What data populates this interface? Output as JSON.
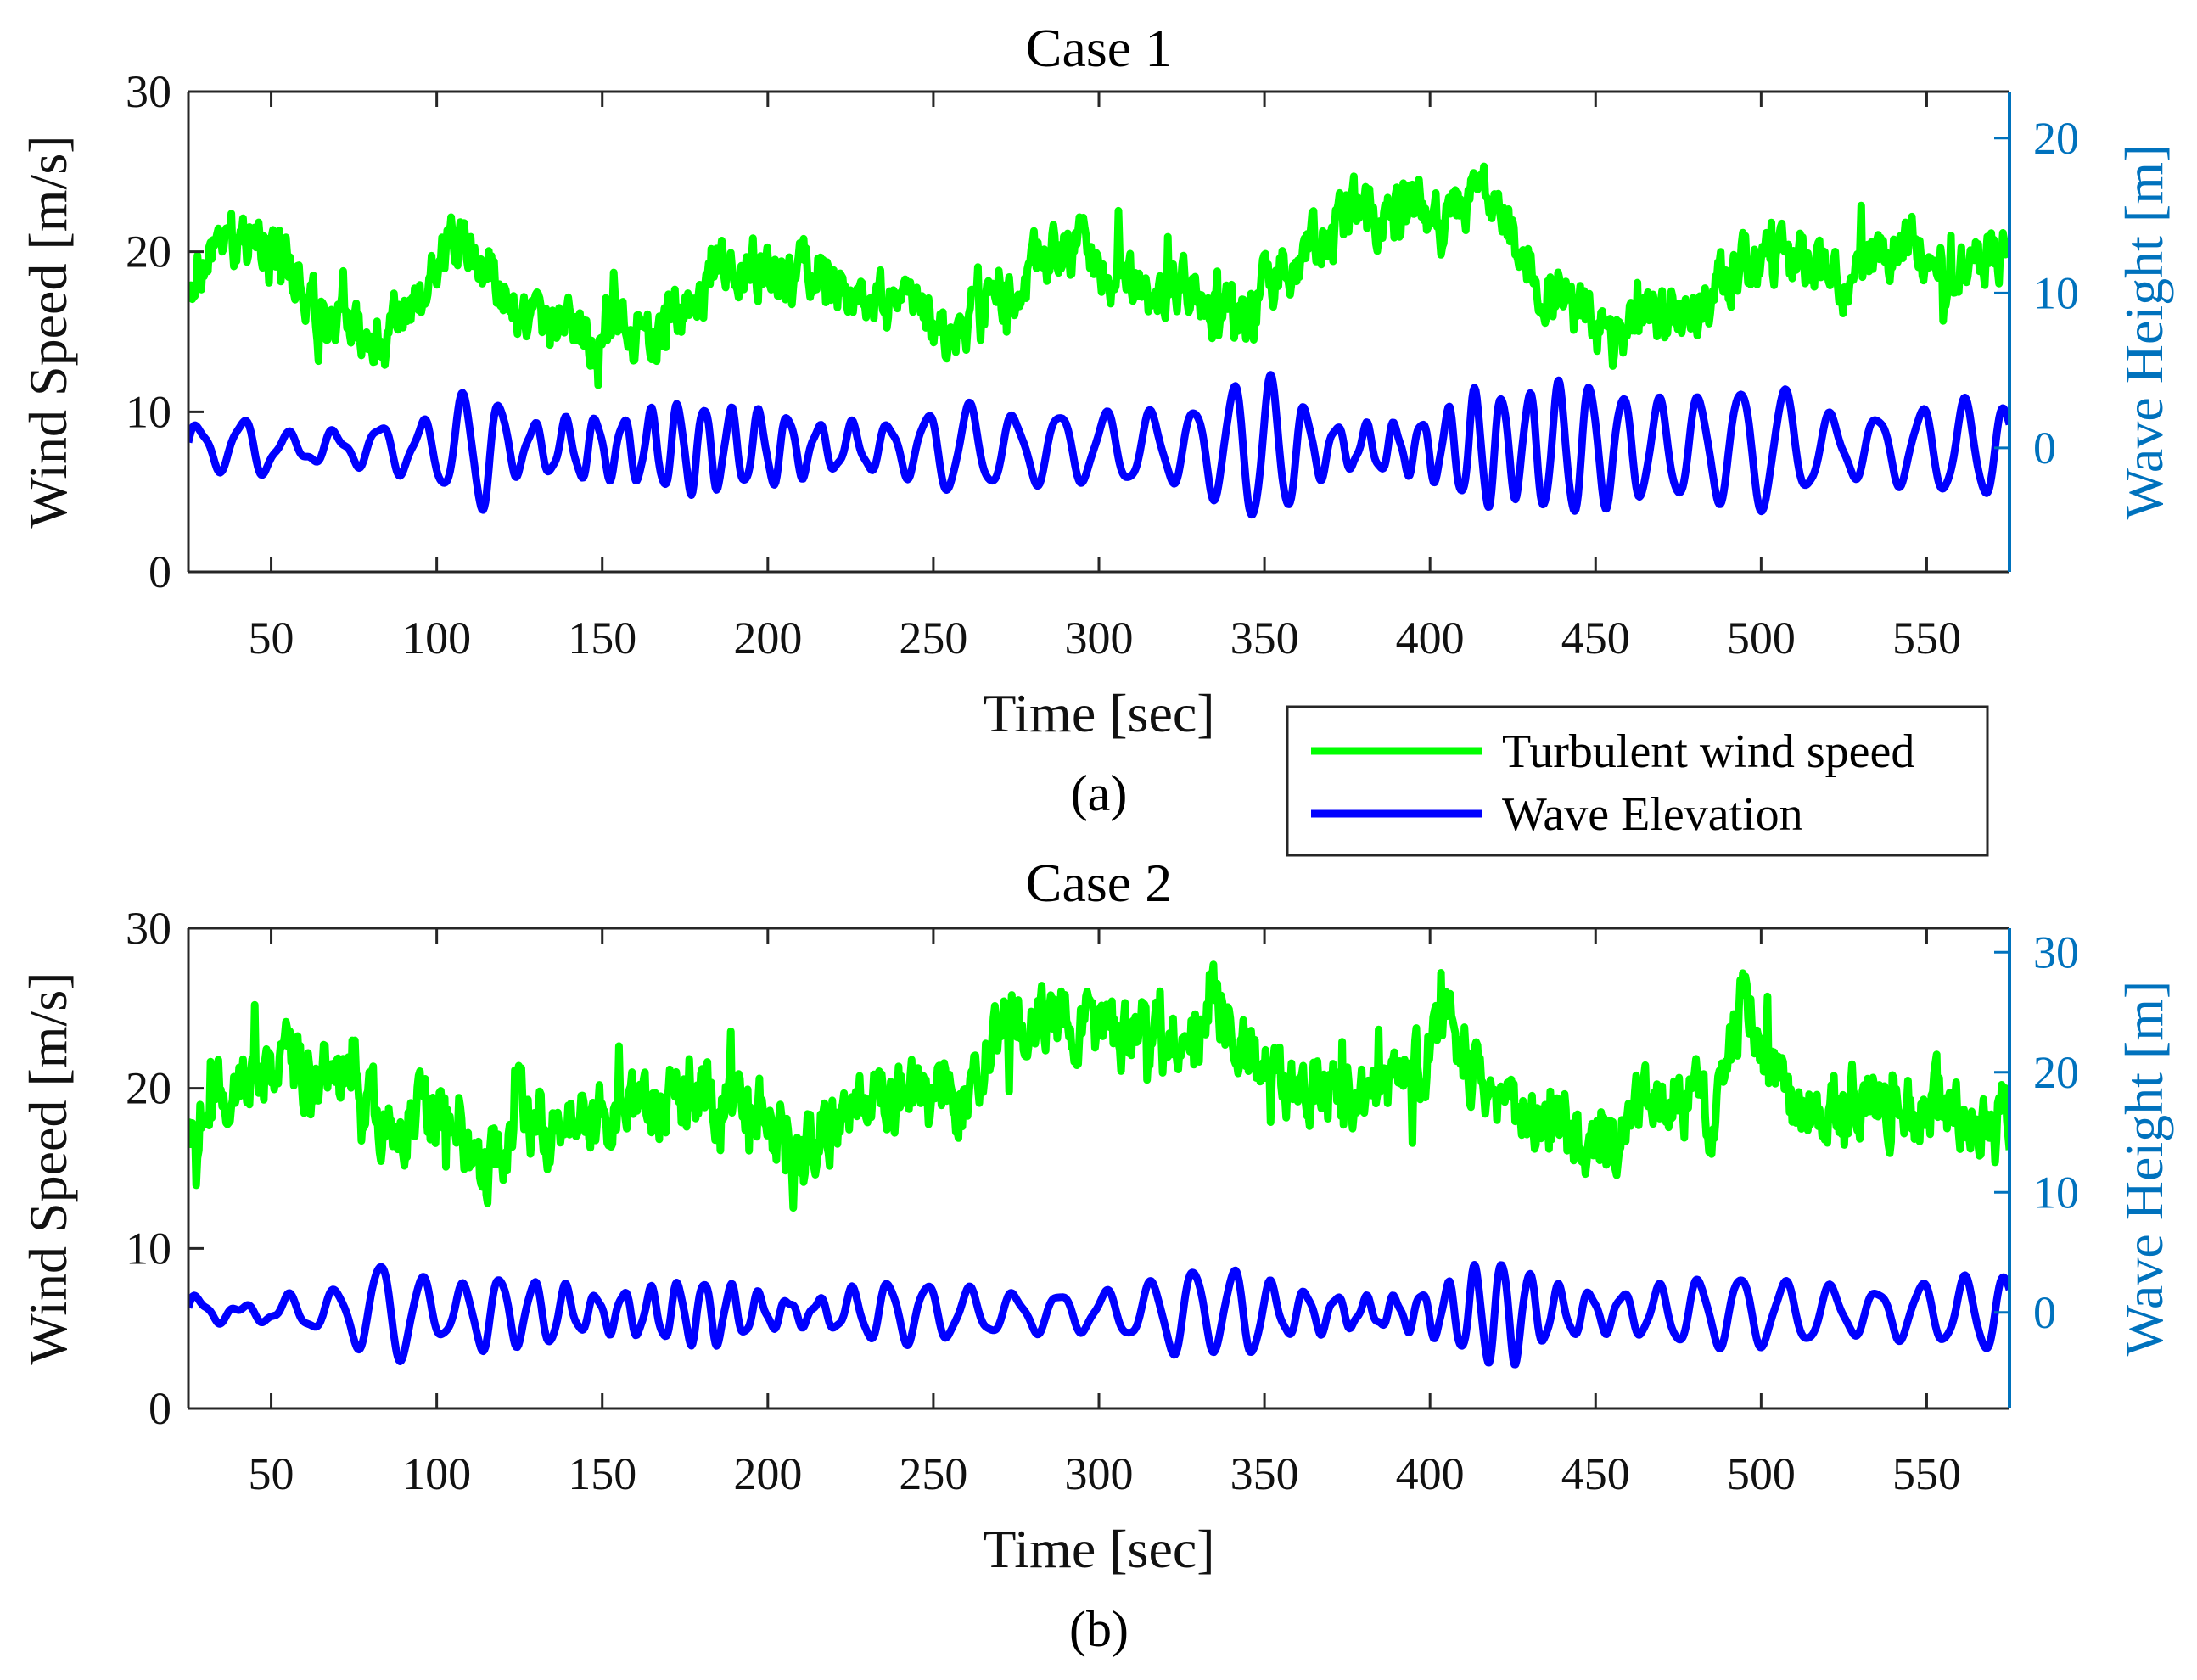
{
  "legend": {
    "position": "between-panels-right",
    "entries": [
      {
        "label": "Turbulent wind speed",
        "color": "#00FF00"
      },
      {
        "label": "Wave Elevation",
        "color": "#0000FF"
      }
    ]
  },
  "chart_data": [
    {
      "type": "line",
      "title": "Case 1",
      "caption": "(a)",
      "xlabel": "Time [sec]",
      "ylabel": "Wind Speed [m/s]",
      "y2label": "Wave Height [m]",
      "xlim": [
        25,
        575
      ],
      "ylim": [
        0,
        30
      ],
      "y2lim": [
        -8,
        23
      ],
      "xticks": [
        50,
        100,
        150,
        200,
        250,
        300,
        350,
        400,
        450,
        500,
        550
      ],
      "yticks": [
        0,
        10,
        20,
        30
      ],
      "y2ticks": [
        0,
        10,
        20
      ],
      "grid": false,
      "series": [
        {
          "name": "Turbulent wind speed",
          "axis": "left",
          "color": "#00FF00",
          "x": [
            25,
            35,
            45,
            55,
            65,
            75,
            85,
            95,
            105,
            115,
            125,
            135,
            145,
            155,
            165,
            175,
            185,
            195,
            205,
            215,
            225,
            235,
            245,
            255,
            265,
            275,
            285,
            295,
            305,
            315,
            325,
            335,
            345,
            355,
            365,
            375,
            385,
            395,
            405,
            415,
            425,
            435,
            445,
            455,
            465,
            475,
            485,
            495,
            505,
            515,
            525,
            535,
            545,
            555,
            565,
            575
          ],
          "values": [
            18.5,
            20.5,
            21,
            19.5,
            15.5,
            15,
            14.5,
            17,
            21,
            19,
            16,
            15.5,
            15,
            15.5,
            14.5,
            16,
            18.5,
            19.5,
            18,
            19.5,
            17,
            17,
            16,
            14.5,
            17,
            18,
            20,
            20.5,
            18,
            17.5,
            18,
            16.5,
            16,
            19,
            20.5,
            22,
            22.5,
            23,
            21.5,
            24,
            21,
            18,
            16,
            14,
            16.5,
            16,
            17,
            19.5,
            19.5,
            19,
            18,
            19.5,
            21,
            18,
            19,
            20.5
          ],
          "amplitude": 1.8
        },
        {
          "name": "Wave Elevation",
          "axis": "right",
          "color": "#0000FF",
          "x": [
            25,
            35,
            45,
            55,
            65,
            75,
            85,
            95,
            105,
            115,
            125,
            135,
            145,
            155,
            165,
            175,
            185,
            195,
            205,
            215,
            225,
            235,
            245,
            255,
            265,
            275,
            285,
            295,
            305,
            315,
            325,
            335,
            345,
            355,
            365,
            375,
            385,
            395,
            405,
            415,
            425,
            435,
            445,
            455,
            465,
            475,
            485,
            495,
            505,
            515,
            525,
            535,
            545,
            555,
            565,
            575
          ],
          "values": [
            1.5,
            1.5,
            3,
            1.5,
            2,
            1.5,
            2,
            1.5,
            3,
            4.5,
            2,
            3,
            4,
            3,
            3,
            3,
            2.5,
            2.5,
            3,
            2.5,
            3,
            2.5,
            2.5,
            3,
            2.5,
            2,
            3,
            3.5,
            4.5,
            4,
            3,
            3.5,
            4.5,
            4.5,
            2.5,
            2,
            3,
            3,
            3.5,
            4.5,
            3,
            4,
            5,
            5.5,
            6,
            6,
            5,
            4.5,
            4,
            2.5,
            2,
            3,
            4.5,
            5.5,
            5,
            3
          ],
          "amplitude_note": "oscillation envelope (m)"
        }
      ]
    },
    {
      "type": "line",
      "title": "Case 2",
      "caption": "(b)",
      "xlabel": "Time [sec]",
      "ylabel": "Wind Speed [m/s]",
      "y2label": "Wave Height [m]",
      "xlim": [
        25,
        575
      ],
      "ylim": [
        0,
        30
      ],
      "y2lim": [
        -8,
        32
      ],
      "xticks": [
        50,
        100,
        150,
        200,
        250,
        300,
        350,
        400,
        450,
        500,
        550
      ],
      "yticks": [
        0,
        10,
        20,
        30
      ],
      "y2ticks": [
        0,
        10,
        20,
        30
      ],
      "grid": false,
      "series": [
        {
          "name": "Turbulent wind speed",
          "axis": "left",
          "color": "#00FF00",
          "x": [
            25,
            35,
            45,
            55,
            65,
            75,
            85,
            95,
            105,
            115,
            125,
            135,
            145,
            155,
            165,
            175,
            185,
            195,
            205,
            215,
            225,
            235,
            245,
            255,
            265,
            275,
            285,
            295,
            305,
            315,
            325,
            335,
            345,
            355,
            365,
            375,
            385,
            395,
            405,
            415,
            425,
            435,
            445,
            455,
            465,
            475,
            485,
            495,
            505,
            515,
            525,
            535,
            545,
            555,
            565,
            575
          ],
          "values": [
            18,
            20,
            20.5,
            22,
            20.5,
            21,
            17,
            18.5,
            18,
            14,
            18.5,
            17.5,
            18,
            19,
            19,
            19,
            19.5,
            19,
            16.5,
            17,
            18.5,
            19.5,
            19.5,
            19,
            21.5,
            24.5,
            24,
            24.5,
            23,
            23.5,
            23.5,
            25,
            22,
            20.5,
            19.5,
            19.5,
            20,
            21,
            24.5,
            20,
            19,
            18,
            16,
            17,
            18.5,
            20,
            18.5,
            26,
            20,
            18.5,
            19,
            19.5,
            18.5,
            19,
            18,
            18.5
          ],
          "amplitude": 2.2
        },
        {
          "name": "Wave Elevation",
          "axis": "right",
          "color": "#0000FF",
          "x": [
            25,
            35,
            45,
            55,
            65,
            75,
            85,
            95,
            105,
            115,
            125,
            135,
            145,
            155,
            165,
            175,
            185,
            195,
            205,
            215,
            225,
            235,
            245,
            255,
            265,
            275,
            285,
            295,
            305,
            315,
            325,
            335,
            345,
            355,
            365,
            375,
            385,
            395,
            405,
            415,
            425,
            435,
            445,
            455,
            465,
            475,
            485,
            495,
            505,
            515,
            525,
            535,
            545,
            555,
            565,
            575
          ],
          "values": [
            2,
            1,
            1,
            2.5,
            2,
            3,
            4.5,
            3,
            2,
            5,
            5,
            5,
            2,
            2,
            2,
            2.5,
            3,
            2.5,
            2,
            2,
            3,
            3,
            2.5,
            2,
            2,
            2,
            3,
            3,
            3,
            3,
            4,
            3,
            4,
            2.5,
            3,
            2.5,
            2,
            2,
            2.5,
            4,
            4.5,
            3,
            3,
            3,
            3.5,
            3.5,
            3,
            3,
            2.5,
            3,
            3,
            3.5,
            4.5,
            3.5,
            3.5,
            3
          ],
          "amplitude_note": "oscillation envelope (m)"
        }
      ]
    }
  ]
}
